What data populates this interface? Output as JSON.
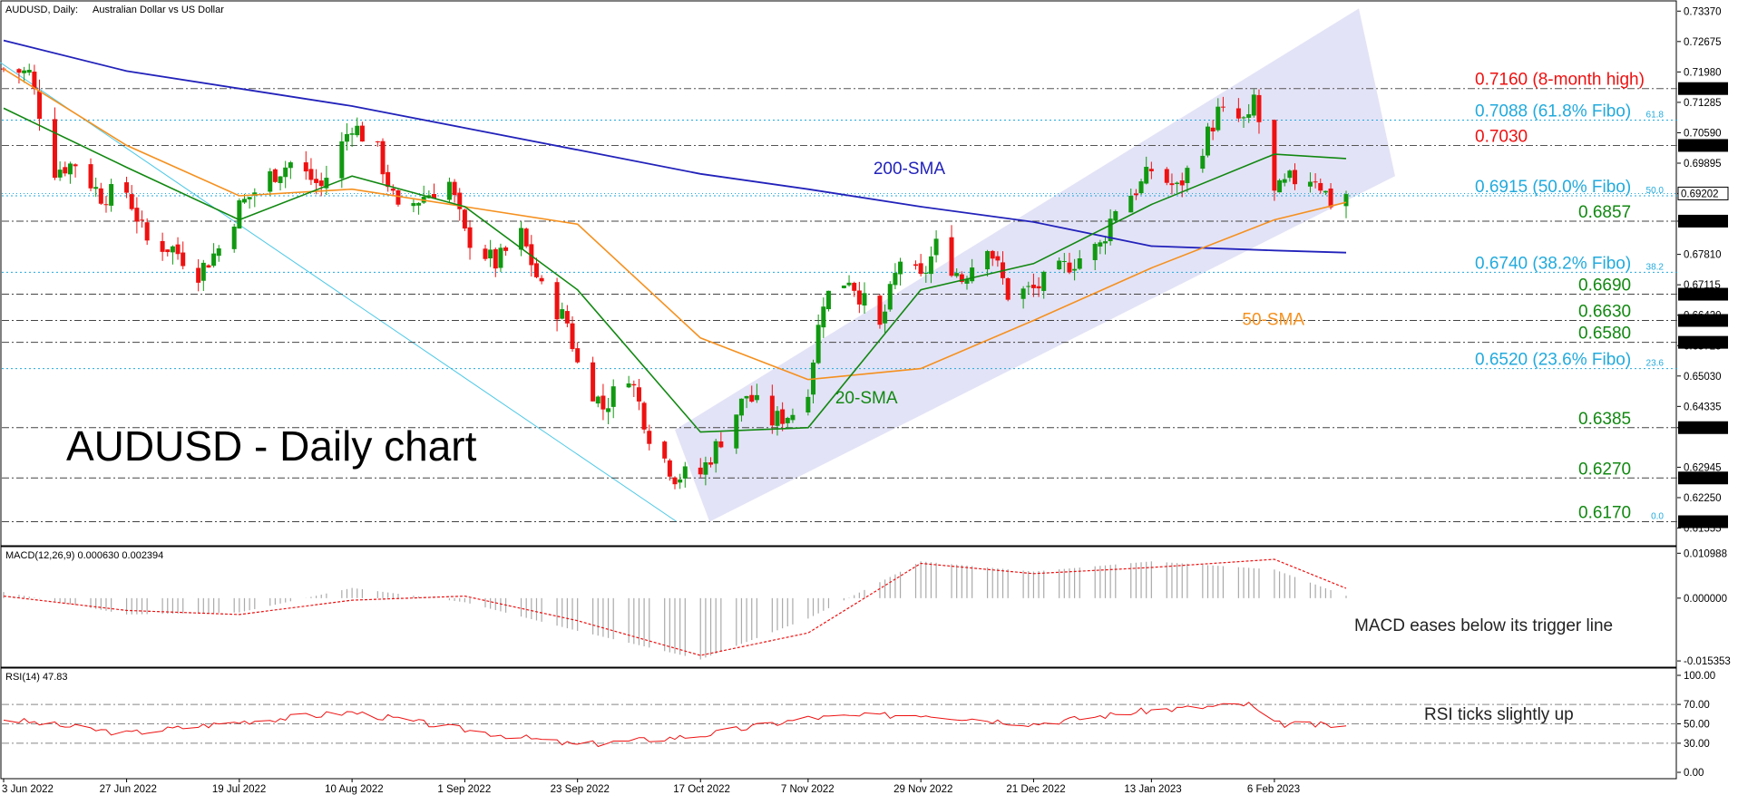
{
  "header": {
    "symbol": "AUDUSD, Daily:",
    "description": "Australian Dollar vs US Dollar"
  },
  "colors": {
    "bull": "#119911",
    "bear": "#ee1111",
    "sma20": "#118811",
    "sma50": "#f5901e",
    "sma200": "#2222bb",
    "channel": "#dcdcf5",
    "fibo": "#22aadd",
    "resistance": "#ee1111",
    "support": "#118811",
    "macd_hist": "#aaaaaa",
    "macd_signal": "#ee1111",
    "rsi": "#ee1111"
  },
  "chart_data": [
    {
      "type": "candlestick",
      "title": "AUDUSD - Daily chart",
      "x_ticks": [
        "3 Jun 2022",
        "27 Jun 2022",
        "19 Jul 2022",
        "10 Aug 2022",
        "1 Sep 2022",
        "23 Sep 2022",
        "17 Oct 2022",
        "7 Nov 2022",
        "29 Nov 2022",
        "21 Dec 2022",
        "13 Jan 2023",
        "6 Feb 2023"
      ],
      "y_ticks": [
        "0.73370",
        "0.72675",
        "0.71980",
        "0.71285",
        "0.70590",
        "0.69895",
        "0.69202",
        "0.68570",
        "0.67810",
        "0.67115",
        "0.66420",
        "0.65725",
        "0.65030",
        "0.64335",
        "0.63850",
        "0.62945",
        "0.62250",
        "0.61555"
      ],
      "ylim": [
        0.614,
        0.735
      ],
      "levels": [
        {
          "value": 0.716,
          "label": "0.7160 (8-month high)",
          "axis_label": "0.71600",
          "kind": "resistance"
        },
        {
          "value": 0.7088,
          "label": "0.7088 (61.8% Fibo)",
          "fib_tag": "61.8",
          "kind": "fibo"
        },
        {
          "value": 0.703,
          "label": "0.7030",
          "axis_label": "0.70300",
          "kind": "resistance"
        },
        {
          "value": 0.6915,
          "label": "0.6915 (50.0% Fibo)",
          "fib_tag": "50.0",
          "kind": "fibo"
        },
        {
          "value": 0.6857,
          "label": "0.6857",
          "axis_label": "0.68570",
          "kind": "support"
        },
        {
          "value": 0.674,
          "label": "0.6740 (38.2% Fibo)",
          "fib_tag": "38.2",
          "kind": "fibo"
        },
        {
          "value": 0.669,
          "label": "0.6690",
          "axis_label": "0.66900",
          "kind": "support"
        },
        {
          "value": 0.663,
          "label": "0.6630",
          "axis_label": "0.66300",
          "kind": "support"
        },
        {
          "value": 0.658,
          "label": "0.6580",
          "axis_label": "0.65800",
          "kind": "support"
        },
        {
          "value": 0.652,
          "label": "0.6520 (23.6% Fibo)",
          "fib_tag": "23.6",
          "kind": "fibo"
        },
        {
          "value": 0.6385,
          "label": "0.6385",
          "axis_label": "0.63850",
          "kind": "support"
        },
        {
          "value": 0.627,
          "label": "0.6270",
          "axis_label": "0.62700",
          "kind": "support"
        },
        {
          "value": 0.617,
          "label": "0.6170",
          "axis_label": "0.61700",
          "fib_tag": "0.0",
          "kind": "support"
        }
      ],
      "current_price": {
        "value": 0.69202,
        "label": "0.69202"
      },
      "series_labels": [
        {
          "name": "200-SMA",
          "at_x": "7 Nov 2022",
          "at_y": 0.6965
        },
        {
          "name": "50-SMA",
          "at_x": "21 Dec 2022",
          "at_y": 0.662
        },
        {
          "name": "20-SMA",
          "at_x": "7 Nov 2022",
          "at_y": 0.644
        }
      ],
      "close_path": [
        {
          "x": "3 Jun 2022",
          "y": 0.7205
        },
        {
          "x": "8 Jun 2022",
          "y": 0.7195
        },
        {
          "x": "13 Jun 2022",
          "y": 0.6975
        },
        {
          "x": "17 Jun 2022",
          "y": 0.699
        },
        {
          "x": "22 Jun 2022",
          "y": 0.6915
        },
        {
          "x": "27 Jun 2022",
          "y": 0.6925
        },
        {
          "x": "1 Jul 2022",
          "y": 0.681
        },
        {
          "x": "6 Jul 2022",
          "y": 0.6795
        },
        {
          "x": "11 Jul 2022",
          "y": 0.674
        },
        {
          "x": "15 Jul 2022",
          "y": 0.6795
        },
        {
          "x": "19 Jul 2022",
          "y": 0.689
        },
        {
          "x": "25 Jul 2022",
          "y": 0.696
        },
        {
          "x": "29 Jul 2022",
          "y": 0.699
        },
        {
          "x": "4 Aug 2022",
          "y": 0.6935
        },
        {
          "x": "10 Aug 2022",
          "y": 0.708
        },
        {
          "x": "15 Aug 2022",
          "y": 0.7015
        },
        {
          "x": "19 Aug 2022",
          "y": 0.6875
        },
        {
          "x": "24 Aug 2022",
          "y": 0.6915
        },
        {
          "x": "29 Aug 2022",
          "y": 0.6945
        },
        {
          "x": "1 Sep 2022",
          "y": 0.6825
        },
        {
          "x": "7 Sep 2022",
          "y": 0.676
        },
        {
          "x": "12 Sep 2022",
          "y": 0.6825
        },
        {
          "x": "16 Sep 2022",
          "y": 0.67
        },
        {
          "x": "21 Sep 2022",
          "y": 0.6625
        },
        {
          "x": "23 Sep 2022",
          "y": 0.653
        },
        {
          "x": "28 Sep 2022",
          "y": 0.643
        },
        {
          "x": "3 Oct 2022",
          "y": 0.651
        },
        {
          "x": "7 Oct 2022",
          "y": 0.637
        },
        {
          "x": "12 Oct 2022",
          "y": 0.6275
        },
        {
          "x": "17 Oct 2022",
          "y": 0.628
        },
        {
          "x": "21 Oct 2022",
          "y": 0.636
        },
        {
          "x": "26 Oct 2022",
          "y": 0.646
        },
        {
          "x": "31 Oct 2022",
          "y": 0.64
        },
        {
          "x": "4 Nov 2022",
          "y": 0.642
        },
        {
          "x": "7 Nov 2022",
          "y": 0.648
        },
        {
          "x": "10 Nov 2022",
          "y": 0.668
        },
        {
          "x": "15 Nov 2022",
          "y": 0.673
        },
        {
          "x": "21 Nov 2022",
          "y": 0.661
        },
        {
          "x": "25 Nov 2022",
          "y": 0.677
        },
        {
          "x": "29 Nov 2022",
          "y": 0.672
        },
        {
          "x": "2 Dec 2022",
          "y": 0.68
        },
        {
          "x": "7 Dec 2022",
          "y": 0.6725
        },
        {
          "x": "12 Dec 2022",
          "y": 0.681
        },
        {
          "x": "16 Dec 2022",
          "y": 0.669
        },
        {
          "x": "21 Dec 2022",
          "y": 0.67
        },
        {
          "x": "28 Dec 2022",
          "y": 0.676
        },
        {
          "x": "3 Jan 2023",
          "y": 0.68
        },
        {
          "x": "6 Jan 2023",
          "y": 0.689
        },
        {
          "x": "11 Jan 2023",
          "y": 0.694
        },
        {
          "x": "13 Jan 2023",
          "y": 0.6975
        },
        {
          "x": "18 Jan 2023",
          "y": 0.693
        },
        {
          "x": "23 Jan 2023",
          "y": 0.703
        },
        {
          "x": "26 Jan 2023",
          "y": 0.7105
        },
        {
          "x": "1 Feb 2023",
          "y": 0.708
        },
        {
          "x": "2 Feb 2023",
          "y": 0.714
        },
        {
          "x": "6 Feb 2023",
          "y": 0.6915
        },
        {
          "x": "9 Feb 2023",
          "y": 0.695
        },
        {
          "x": "14 Feb 2023",
          "y": 0.696
        },
        {
          "x": "17 Feb 2023",
          "y": 0.69
        },
        {
          "x": "20 Feb 2023",
          "y": 0.692
        }
      ],
      "sma20": [
        {
          "x": "3 Jun 2022",
          "y": 0.7115
        },
        {
          "x": "27 Jun 2022",
          "y": 0.698
        },
        {
          "x": "19 Jul 2022",
          "y": 0.686
        },
        {
          "x": "10 Aug 2022",
          "y": 0.696
        },
        {
          "x": "1 Sep 2022",
          "y": 0.689
        },
        {
          "x": "23 Sep 2022",
          "y": 0.67
        },
        {
          "x": "17 Oct 2022",
          "y": 0.6375
        },
        {
          "x": "7 Nov 2022",
          "y": 0.6385
        },
        {
          "x": "29 Nov 2022",
          "y": 0.67
        },
        {
          "x": "21 Dec 2022",
          "y": 0.676
        },
        {
          "x": "13 Jan 2023",
          "y": 0.6895
        },
        {
          "x": "6 Feb 2023",
          "y": 0.701
        },
        {
          "x": "20 Feb 2023",
          "y": 0.7
        }
      ],
      "sma50": [
        {
          "x": "3 Jun 2022",
          "y": 0.7205
        },
        {
          "x": "27 Jun 2022",
          "y": 0.703
        },
        {
          "x": "19 Jul 2022",
          "y": 0.6915
        },
        {
          "x": "10 Aug 2022",
          "y": 0.693
        },
        {
          "x": "1 Sep 2022",
          "y": 0.689
        },
        {
          "x": "23 Sep 2022",
          "y": 0.685
        },
        {
          "x": "17 Oct 2022",
          "y": 0.659
        },
        {
          "x": "7 Nov 2022",
          "y": 0.6495
        },
        {
          "x": "29 Nov 2022",
          "y": 0.652
        },
        {
          "x": "21 Dec 2022",
          "y": 0.663
        },
        {
          "x": "13 Jan 2023",
          "y": 0.675
        },
        {
          "x": "6 Feb 2023",
          "y": 0.686
        },
        {
          "x": "20 Feb 2023",
          "y": 0.69
        }
      ],
      "sma200": [
        {
          "x": "3 Jun 2022",
          "y": 0.727
        },
        {
          "x": "27 Jun 2022",
          "y": 0.72
        },
        {
          "x": "19 Jul 2022",
          "y": 0.716
        },
        {
          "x": "10 Aug 2022",
          "y": 0.712
        },
        {
          "x": "1 Sep 2022",
          "y": 0.707
        },
        {
          "x": "23 Sep 2022",
          "y": 0.702
        },
        {
          "x": "17 Oct 2022",
          "y": 0.6965
        },
        {
          "x": "7 Nov 2022",
          "y": 0.693
        },
        {
          "x": "29 Nov 2022",
          "y": 0.689
        },
        {
          "x": "21 Dec 2022",
          "y": 0.6855
        },
        {
          "x": "13 Jan 2023",
          "y": 0.68
        },
        {
          "x": "6 Feb 2023",
          "y": 0.679
        },
        {
          "x": "20 Feb 2023",
          "y": 0.6785
        }
      ]
    },
    {
      "type": "bar",
      "name": "MACD",
      "header": "MACD(12,26,9) 0.000630 0.002394",
      "y_ticks": [
        "0.010988",
        "0.000000",
        "-0.015353"
      ],
      "ylim": [
        -0.016,
        0.0115
      ],
      "annotation": "MACD eases below its trigger line",
      "histogram_path": [
        {
          "x": "3 Jun 2022",
          "y": 0.0015
        },
        {
          "x": "27 Jun 2022",
          "y": -0.004
        },
        {
          "x": "19 Jul 2022",
          "y": -0.0035
        },
        {
          "x": "10 Aug 2022",
          "y": 0.0025
        },
        {
          "x": "1 Sep 2022",
          "y": -0.001
        },
        {
          "x": "23 Sep 2022",
          "y": -0.008
        },
        {
          "x": "17 Oct 2022",
          "y": -0.015
        },
        {
          "x": "7 Nov 2022",
          "y": -0.005
        },
        {
          "x": "29 Nov 2022",
          "y": 0.009
        },
        {
          "x": "21 Dec 2022",
          "y": 0.0065
        },
        {
          "x": "13 Jan 2023",
          "y": 0.009
        },
        {
          "x": "6 Feb 2023",
          "y": 0.007
        },
        {
          "x": "20 Feb 2023",
          "y": 0.0006
        }
      ],
      "signal": [
        {
          "x": "3 Jun 2022",
          "y": 0.0005
        },
        {
          "x": "27 Jun 2022",
          "y": -0.003
        },
        {
          "x": "19 Jul 2022",
          "y": -0.004
        },
        {
          "x": "10 Aug 2022",
          "y": -0.0005
        },
        {
          "x": "1 Sep 2022",
          "y": 0.0005
        },
        {
          "x": "23 Sep 2022",
          "y": -0.0055
        },
        {
          "x": "17 Oct 2022",
          "y": -0.014
        },
        {
          "x": "7 Nov 2022",
          "y": -0.0085
        },
        {
          "x": "29 Nov 2022",
          "y": 0.0085
        },
        {
          "x": "21 Dec 2022",
          "y": 0.006
        },
        {
          "x": "13 Jan 2023",
          "y": 0.0075
        },
        {
          "x": "6 Feb 2023",
          "y": 0.0095
        },
        {
          "x": "20 Feb 2023",
          "y": 0.0024
        }
      ]
    },
    {
      "type": "line",
      "name": "RSI",
      "header": "RSI(14) 47.83",
      "y_ticks": [
        "100.00",
        "70.00",
        "50.00",
        "30.00",
        "0.00"
      ],
      "ylim": [
        0,
        100
      ],
      "annotation": "RSI ticks slightly up",
      "values": [
        {
          "x": "3 Jun 2022",
          "y": 55
        },
        {
          "x": "27 Jun 2022",
          "y": 40
        },
        {
          "x": "19 Jul 2022",
          "y": 52
        },
        {
          "x": "10 Aug 2022",
          "y": 62
        },
        {
          "x": "1 Sep 2022",
          "y": 44
        },
        {
          "x": "23 Sep 2022",
          "y": 28
        },
        {
          "x": "17 Oct 2022",
          "y": 38
        },
        {
          "x": "7 Nov 2022",
          "y": 56
        },
        {
          "x": "29 Nov 2022",
          "y": 60
        },
        {
          "x": "21 Dec 2022",
          "y": 50
        },
        {
          "x": "13 Jan 2023",
          "y": 64
        },
        {
          "x": "1 Feb 2023",
          "y": 70
        },
        {
          "x": "6 Feb 2023",
          "y": 50
        },
        {
          "x": "20 Feb 2023",
          "y": 47.83
        }
      ]
    }
  ]
}
